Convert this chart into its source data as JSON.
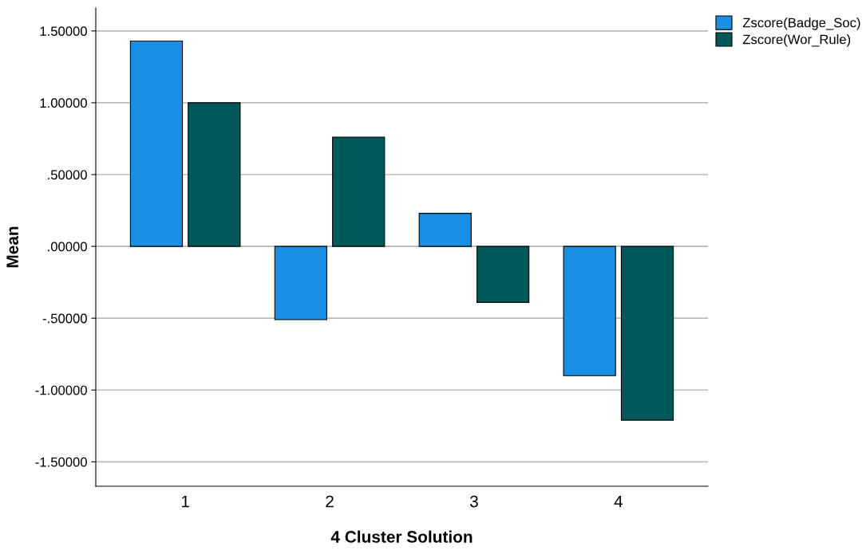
{
  "chart_data": {
    "type": "bar",
    "xlabel": "4 Cluster Solution",
    "ylabel": "Mean",
    "categories": [
      "1",
      "2",
      "3",
      "4"
    ],
    "series": [
      {
        "name": "Zscore(Badge_Soc)",
        "color": "#1a8fe3",
        "values": [
          1.43,
          -0.51,
          0.23,
          -0.9
        ]
      },
      {
        "name": "Zscore(Wor_Rule)",
        "color": "#00585a",
        "values": [
          1.0,
          0.76,
          -0.39,
          -1.21
        ]
      }
    ],
    "ylim": [
      -1.67,
      1.66
    ],
    "yticks": [
      {
        "value": -1.5,
        "label": "-1.50000"
      },
      {
        "value": -1.0,
        "label": "-1.00000"
      },
      {
        "value": -0.5,
        "label": "-.50000"
      },
      {
        "value": 0,
        "label": ".00000"
      },
      {
        "value": 0.5,
        "label": ".50000"
      },
      {
        "value": 1.0,
        "label": "1.00000"
      },
      {
        "value": 1.5,
        "label": "1.50000"
      }
    ],
    "grid": "y",
    "legend": "top right"
  }
}
